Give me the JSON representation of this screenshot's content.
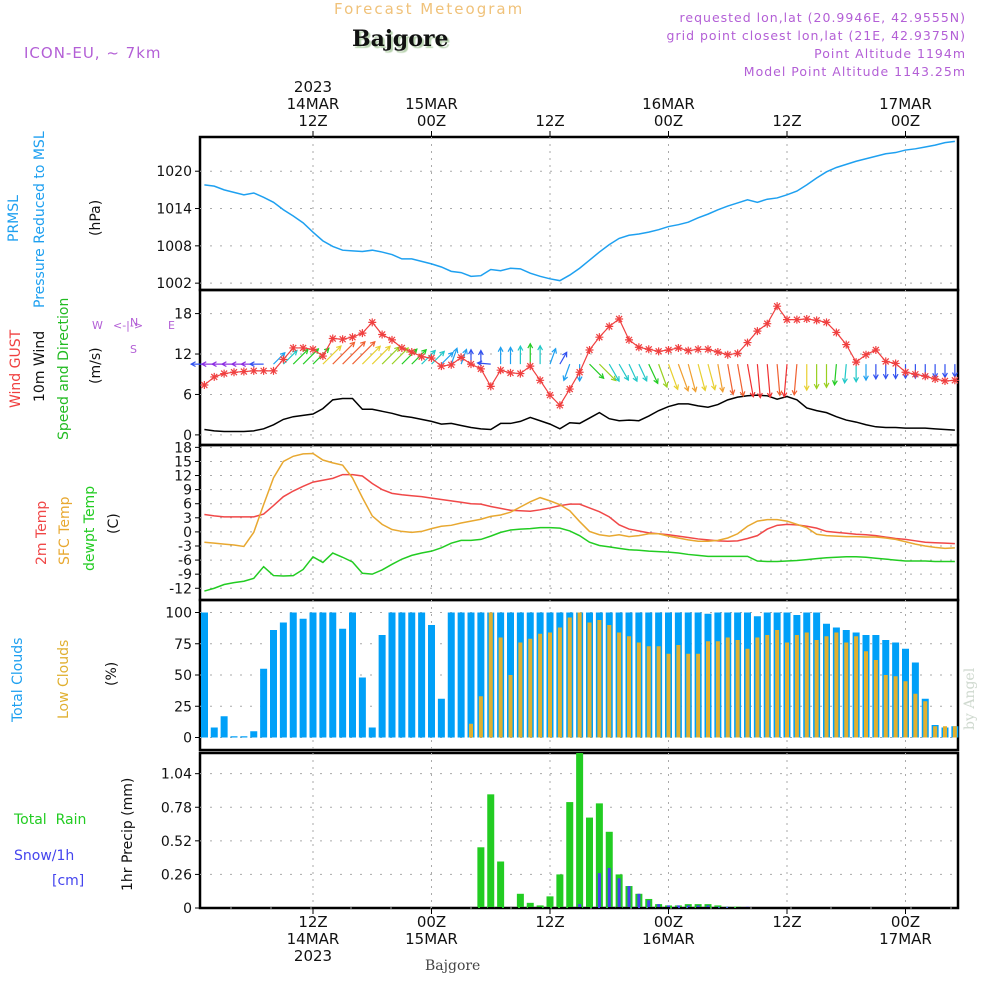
{
  "header": {
    "title": "Forecast Meteogram",
    "location": "Bajgore",
    "model": "ICON-EU, ~ 7km",
    "info_lines": [
      "requested lon,lat (20.9946E, 42.9555N)",
      "grid point closest lon,lat (21E, 42.9375N)",
      "Point Altitude 1194m",
      "Model Point Altitude 1143.25m"
    ]
  },
  "colors": {
    "pressure": "#1ea0f0",
    "gust": "#f04040",
    "wind10m": "#000000",
    "wind_dir_label": "#22bb22",
    "temp2m": "#f04848",
    "sfc_temp": "#e8a830",
    "dewpt": "#22cc22",
    "total_clouds": "#00a0f8",
    "low_clouds": "#e0b030",
    "rain": "#22cc22",
    "snow": "#4444ee",
    "compass": "#b35fd6"
  },
  "top_axis": [
    {
      "hour": 0,
      "lines": [
        "2023",
        "14MAR",
        "12Z"
      ]
    },
    {
      "hour": 12,
      "lines": [
        "15MAR",
        "00Z"
      ]
    },
    {
      "hour": 24,
      "lines": [
        "12Z"
      ]
    },
    {
      "hour": 36,
      "lines": [
        "16MAR",
        "00Z"
      ]
    },
    {
      "hour": 48,
      "lines": [
        "12Z"
      ]
    },
    {
      "hour": 60,
      "lines": [
        "17MAR",
        "00Z"
      ]
    }
  ],
  "bottom_axis": [
    {
      "hour": 0,
      "lines": [
        "12Z",
        "14MAR",
        "2023"
      ]
    },
    {
      "hour": 12,
      "lines": [
        "00Z",
        "15MAR"
      ]
    },
    {
      "hour": 24,
      "lines": [
        "12Z"
      ]
    },
    {
      "hour": 36,
      "lines": [
        "00Z",
        "16MAR"
      ]
    },
    {
      "hour": 48,
      "lines": [
        "12Z"
      ]
    },
    {
      "hour": 60,
      "lines": [
        "00Z",
        "17MAR"
      ]
    }
  ],
  "bottom_location": "Bajgore",
  "credit": "by Angel",
  "compass": {
    "n": "N",
    "s": "S",
    "w": "W",
    "e": "E",
    "arrows": "<-|->"
  },
  "panel_labels": {
    "pressure": {
      "line1": "PRMSL",
      "line2": "Pressure Reduced to MSL",
      "unit": "(hPa)"
    },
    "wind": {
      "gust": "Wind GUST",
      "wind10": "10m Wind",
      "dir": "Speed and Direction",
      "unit": "(m/s)"
    },
    "temp": {
      "t2m": "2m Temp",
      "sfc": "SFC Temp",
      "dew": "dewpt Temp",
      "unit": "(C)"
    },
    "clouds": {
      "total": "Total Clouds",
      "low": "Low Clouds",
      "unit": "(%)"
    },
    "precip": {
      "rain": "Total  Rain",
      "snow": "Snow/1h",
      "snow_unit": "[cm]",
      "axis": "1hr Precip (mm)"
    }
  },
  "chart_data": [
    {
      "type": "line",
      "title": "PRMSL Pressure Reduced to MSL",
      "ylabel": "(hPa)",
      "ylim": [
        1000.9,
        1025.5
      ],
      "yticks": [
        1002,
        1008,
        1014,
        1020
      ],
      "x_start_hour": -11,
      "values": [
        1017.8,
        1017.6,
        1017,
        1016.6,
        1016.2,
        1016.5,
        1015.8,
        1015,
        1013.8,
        1012.8,
        1011.7,
        1010.2,
        1008.8,
        1007.9,
        1007.3,
        1007.2,
        1007.1,
        1007.3,
        1007,
        1006.6,
        1005.9,
        1005.9,
        1005.5,
        1005.1,
        1004.6,
        1003.9,
        1003.7,
        1003.1,
        1003.2,
        1004.2,
        1004,
        1004.4,
        1004.3,
        1003.6,
        1003.1,
        1002.7,
        1002.4,
        1003.3,
        1004.4,
        1005.7,
        1007,
        1008.2,
        1009.2,
        1009.7,
        1009.9,
        1010.2,
        1010.6,
        1011.1,
        1011.4,
        1011.8,
        1012.5,
        1013.1,
        1013.8,
        1014.4,
        1014.9,
        1015.4,
        1015,
        1015.5,
        1015.7,
        1016.2,
        1016.8,
        1017.8,
        1018.9,
        1019.9,
        1020.6,
        1021.1,
        1021.6,
        1022,
        1022.4,
        1022.8,
        1023,
        1023.4,
        1023.6,
        1023.9,
        1024.2,
        1024.6,
        1024.8
      ],
      "grid": true
    },
    {
      "type": "line",
      "title": "Wind GUST / 10m Wind Speed and Direction",
      "ylabel": "(m/s)",
      "ylim": [
        -1.5,
        21.5
      ],
      "yticks": [
        0,
        6,
        12,
        18
      ],
      "x_start_hour": -11,
      "series": [
        {
          "name": "Wind GUST",
          "values": [
            7.4,
            8.6,
            9.1,
            9.3,
            9.4,
            9.5,
            9.5,
            9.5,
            11.2,
            12.9,
            12.9,
            12.7,
            11.7,
            14.3,
            14.2,
            14.5,
            15.1,
            16.7,
            14.9,
            14.1,
            12.9,
            12.3,
            11.6,
            11.4,
            10.2,
            10.4,
            11.5,
            10.5,
            9.8,
            7.2,
            9.6,
            9.2,
            9.1,
            10.2,
            8.1,
            5.9,
            4.4,
            6.8,
            9.3,
            12.6,
            14.5,
            16.1,
            17.2,
            14.1,
            13,
            12.7,
            12.4,
            12.6,
            12.9,
            12.5,
            12.7,
            12.7,
            12.3,
            11.9,
            12.1,
            13.7,
            15.4,
            16.5,
            19.1,
            17.1,
            17.1,
            17.2,
            17,
            16.7,
            15.2,
            13.4,
            10.8,
            11.9,
            12.6,
            10.9,
            10.6,
            9.3,
            9,
            8.7,
            8.3,
            8,
            8.1
          ]
        },
        {
          "name": "10m Wind",
          "values": [
            0.8,
            0.6,
            0.5,
            0.5,
            0.5,
            0.6,
            0.9,
            1.5,
            2.3,
            2.7,
            2.9,
            3.1,
            3.9,
            5.2,
            5.4,
            5.4,
            3.8,
            3.8,
            3.5,
            3.2,
            2.8,
            2.6,
            2.3,
            2,
            1.6,
            1.7,
            1.4,
            1.1,
            0.9,
            0.8,
            1.7,
            1.7,
            2,
            2.6,
            2.1,
            1.6,
            0.9,
            1.8,
            1.7,
            2.5,
            3.3,
            2.4,
            2.1,
            2.2,
            2.1,
            2.8,
            3.6,
            4.2,
            4.6,
            4.6,
            4.3,
            4.1,
            4.5,
            5.2,
            5.6,
            5.8,
            5.9,
            5.8,
            5.3,
            5.7,
            5.2,
            4,
            3.6,
            3.3,
            2.7,
            2.2,
            1.9,
            1.5,
            1.2,
            1.1,
            1.1,
            1,
            1,
            1,
            0.9,
            0.8,
            0.7
          ]
        }
      ],
      "wind_direction_from_deg": [
        90,
        90,
        90,
        90,
        90,
        90,
        90,
        225,
        225,
        225,
        225,
        225,
        225,
        225,
        225,
        225,
        225,
        225,
        225,
        225,
        225,
        225,
        225,
        225,
        225,
        200,
        200,
        180,
        180,
        95,
        180,
        180,
        180,
        180,
        180,
        200,
        210,
        20,
        0,
        315,
        315,
        330,
        330,
        335,
        335,
        335,
        340,
        340,
        340,
        345,
        345,
        345,
        350,
        350,
        350,
        350,
        355,
        355,
        355,
        5,
        5,
        0,
        0,
        0,
        5,
        5,
        0,
        0,
        0,
        0,
        0,
        0,
        0,
        0,
        0,
        0,
        0
      ],
      "grid": true
    },
    {
      "type": "line",
      "title": "2m Temp / SFC Temp / dewpt Temp",
      "ylabel": "(C)",
      "ylim": [
        -14.5,
        18.5
      ],
      "yticks": [
        -12,
        -9,
        -6,
        -3,
        0,
        3,
        6,
        9,
        12,
        15,
        18
      ],
      "x_start_hour": -11,
      "series": [
        {
          "name": "2m Temp",
          "values": [
            3.7,
            3.4,
            3.2,
            3.2,
            3.2,
            3.2,
            3.8,
            5.6,
            7.5,
            8.7,
            9.7,
            10.6,
            11,
            11.4,
            12.2,
            12.2,
            11.9,
            10.3,
            9,
            8.2,
            7.9,
            7.7,
            7.5,
            7.2,
            6.9,
            6.6,
            6.3,
            6,
            5.9,
            5.4,
            5,
            4.6,
            4.5,
            4.4,
            4.7,
            5.1,
            5.6,
            5.9,
            5.9,
            5.1,
            4.3,
            3.2,
            1.5,
            0.6,
            0.2,
            -0.2,
            -0.4,
            -0.6,
            -0.9,
            -1.2,
            -1.5,
            -1.7,
            -1.9,
            -2,
            -1.9,
            -1.4,
            -0.8,
            0.6,
            1.4,
            1.6,
            1.5,
            1.2,
            0.8,
            0.1,
            -0.1,
            -0.3,
            -0.5,
            -0.6,
            -0.8,
            -1.1,
            -1.4,
            -1.6,
            -1.9,
            -2.2,
            -2.3,
            -2.4,
            -2.5
          ]
        },
        {
          "name": "SFC Temp",
          "values": [
            -2.2,
            -2.4,
            -2.6,
            -2.8,
            -3.1,
            -0.1,
            5.8,
            11.5,
            15,
            16.1,
            16.6,
            16.7,
            15.3,
            14.7,
            14.2,
            11.5,
            7.3,
            3.4,
            1.6,
            0.5,
            0.1,
            -0.1,
            0.1,
            0.7,
            1.2,
            1.4,
            1.9,
            2.3,
            2.7,
            3.3,
            3.6,
            4.2,
            5.3,
            6.4,
            7.3,
            6.6,
            5.8,
            4.5,
            2.2,
            0.1,
            -0.6,
            -0.9,
            -0.6,
            -1,
            -0.8,
            -0.4,
            -0.4,
            -0.9,
            -1.3,
            -1.7,
            -2,
            -2,
            -1.8,
            -1.3,
            -0.4,
            1.2,
            2.3,
            2.6,
            2.6,
            2.3,
            1.6,
            0.9,
            -0.5,
            -0.8,
            -0.9,
            -1,
            -1,
            -1.1,
            -1.1,
            -1.3,
            -1.6,
            -2.1,
            -2.6,
            -3,
            -3.3,
            -3.5,
            -3.4
          ]
        },
        {
          "name": "dewpt Temp",
          "values": [
            -12.6,
            -12,
            -11.2,
            -10.8,
            -10.5,
            -9.9,
            -7.4,
            -9.3,
            -9.4,
            -9.3,
            -8,
            -5.3,
            -6.5,
            -4.5,
            -5.4,
            -6.4,
            -8.8,
            -9,
            -8.1,
            -6.9,
            -5.8,
            -5,
            -4.5,
            -4.1,
            -3.4,
            -2.4,
            -1.8,
            -1.8,
            -1.6,
            -0.9,
            -0.1,
            0.4,
            0.6,
            0.7,
            0.9,
            0.9,
            0.8,
            0.2,
            -0.8,
            -2.2,
            -2.9,
            -3.2,
            -3.5,
            -3.8,
            -3.9,
            -4.1,
            -4.2,
            -4.3,
            -4.5,
            -4.8,
            -5,
            -5.2,
            -5.2,
            -5.2,
            -5.2,
            -5.2,
            -6.2,
            -6.3,
            -6.3,
            -6.2,
            -6.1,
            -5.9,
            -5.7,
            -5.5,
            -5.4,
            -5.3,
            -5.3,
            -5.4,
            -5.6,
            -5.8,
            -6,
            -6.2,
            -6.2,
            -6.2,
            -6.3,
            -6.3,
            -6.3
          ]
        }
      ],
      "grid": true
    },
    {
      "type": "bar",
      "title": "Total Clouds / Low Clouds",
      "ylabel": "(%)",
      "ylim": [
        -10,
        110
      ],
      "yticks": [
        0,
        25,
        50,
        75,
        100
      ],
      "x_start_hour": -11,
      "series": [
        {
          "name": "Total Clouds",
          "values": [
            100,
            8,
            17,
            1,
            1,
            5,
            55,
            86,
            92,
            100,
            95,
            100,
            100,
            100,
            87,
            100,
            48,
            8,
            82,
            100,
            100,
            100,
            100,
            90,
            31,
            100,
            100,
            100,
            100,
            100,
            100,
            100,
            100,
            100,
            100,
            100,
            100,
            100,
            100,
            100,
            100,
            100,
            100,
            100,
            100,
            100,
            100,
            100,
            100,
            100,
            100,
            99,
            100,
            100,
            100,
            100,
            97,
            100,
            100,
            100,
            98,
            100,
            100,
            91,
            88,
            86,
            84,
            82,
            82,
            78,
            76,
            71,
            60,
            31,
            10,
            8,
            9
          ]
        },
        {
          "name": "Low Clouds",
          "values": [
            0,
            0,
            0,
            0,
            0,
            0,
            0,
            0,
            0,
            0,
            0,
            0,
            0,
            0,
            0,
            0,
            0,
            0,
            0,
            0,
            0,
            0,
            0,
            0,
            0,
            0,
            0,
            11,
            33,
            100,
            80,
            50,
            76,
            79,
            83,
            84,
            88,
            96,
            100,
            92,
            94,
            90,
            84,
            81,
            76,
            73,
            73,
            67,
            74,
            67,
            67,
            77,
            77,
            80,
            78,
            71,
            80,
            82,
            86,
            76,
            82,
            84,
            78,
            81,
            84,
            76,
            81,
            69,
            62,
            50,
            49,
            45,
            35,
            29,
            9,
            9,
            9
          ]
        }
      ],
      "grid": true
    },
    {
      "type": "bar",
      "title": "Total Rain / Snow per 1h",
      "ylabel": "1hr Precip (mm)",
      "ylim": [
        0,
        1.2
      ],
      "yticks": [
        0,
        0.26,
        0.52,
        0.78,
        1.04
      ],
      "x_start_hour": -11,
      "series": [
        {
          "name": "Total Rain",
          "values": [
            0,
            0,
            0,
            0,
            0,
            0,
            0,
            0,
            0,
            0,
            0,
            0,
            0,
            0,
            0,
            0,
            0,
            0,
            0,
            0,
            0,
            0,
            0,
            0,
            0,
            0,
            0,
            0,
            0.47,
            0.88,
            0.36,
            0,
            0.11,
            0.04,
            0.02,
            0.09,
            0.26,
            0.82,
            1.2,
            0.7,
            0.81,
            0.59,
            0.26,
            0.17,
            0.11,
            0.07,
            0.03,
            0.02,
            0.02,
            0.03,
            0.03,
            0.03,
            0.02,
            0.01,
            0.01,
            0,
            0,
            0,
            0,
            0,
            0,
            0,
            0,
            0,
            0,
            0,
            0,
            0,
            0,
            0,
            0,
            0,
            0,
            0,
            0,
            0,
            0
          ]
        },
        {
          "name": "Snow/1h",
          "values": [
            0,
            0,
            0,
            0,
            0,
            0,
            0,
            0,
            0,
            0,
            0,
            0,
            0,
            0,
            0,
            0,
            0,
            0,
            0,
            0,
            0,
            0,
            0,
            0,
            0,
            0,
            0,
            0,
            0,
            0,
            0,
            0,
            0,
            0,
            0,
            0,
            0,
            0,
            0.03,
            0,
            0.27,
            0.31,
            0.23,
            0.17,
            0.11,
            0.06,
            0.03,
            0.02,
            0.02,
            0.02,
            0.02,
            0.02,
            0.01,
            0.01,
            0,
            0.01,
            0,
            0,
            0,
            0,
            0,
            0,
            0,
            0,
            0,
            0,
            0,
            0,
            0,
            0,
            0,
            0,
            0,
            0,
            0,
            0,
            0
          ]
        }
      ],
      "grid": true
    }
  ]
}
